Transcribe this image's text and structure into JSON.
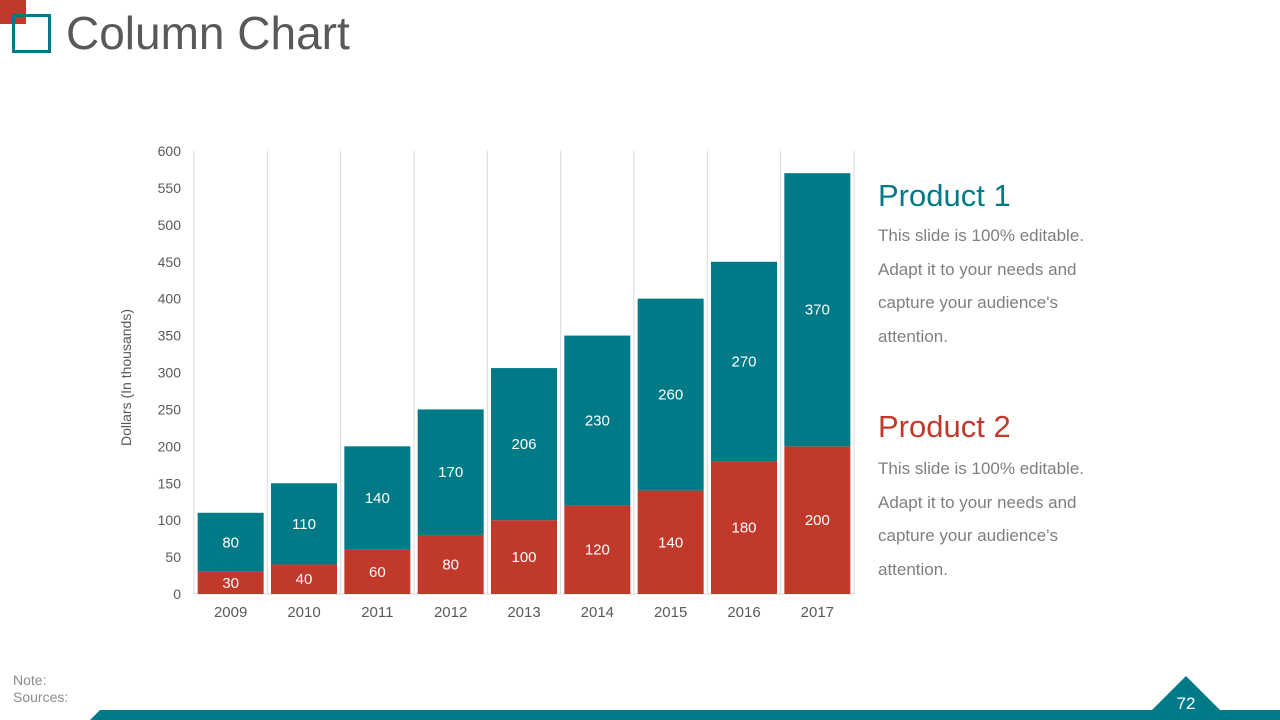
{
  "page": {
    "title": "Column Chart",
    "number": "72"
  },
  "notes": {
    "note_label": "Note:",
    "sources_label": "Sources:"
  },
  "colors": {
    "product1": "#007a87",
    "product2": "#c0392b",
    "axis_text": "#595959",
    "grid": "#d9d9d9"
  },
  "legend": {
    "product1": {
      "title": "Product 1",
      "lines": [
        "This slide is 100% editable.",
        "Adapt it to your needs and",
        "capture your audience's",
        "attention."
      ]
    },
    "product2": {
      "title": "Product 2",
      "lines": [
        "This slide is 100% editable.",
        "Adapt it to your needs and",
        "capture your audience's",
        "attention."
      ]
    }
  },
  "chart_data": {
    "type": "bar",
    "stacked": true,
    "title": "Column Chart",
    "xlabel": "",
    "ylabel": "Dollars (In thousands)",
    "ylim": [
      0,
      600
    ],
    "yticks": [
      0,
      50,
      100,
      150,
      200,
      250,
      300,
      350,
      400,
      450,
      500,
      550,
      600
    ],
    "categories": [
      "2009",
      "2010",
      "2011",
      "2012",
      "2013",
      "2014",
      "2015",
      "2016",
      "2017"
    ],
    "series": [
      {
        "name": "Product 2",
        "color": "#c0392b",
        "values": [
          30,
          40,
          60,
          80,
          100,
          120,
          140,
          180,
          200
        ]
      },
      {
        "name": "Product 1",
        "color": "#007a87",
        "values": [
          80,
          110,
          140,
          170,
          206,
          230,
          260,
          270,
          370
        ]
      }
    ]
  }
}
